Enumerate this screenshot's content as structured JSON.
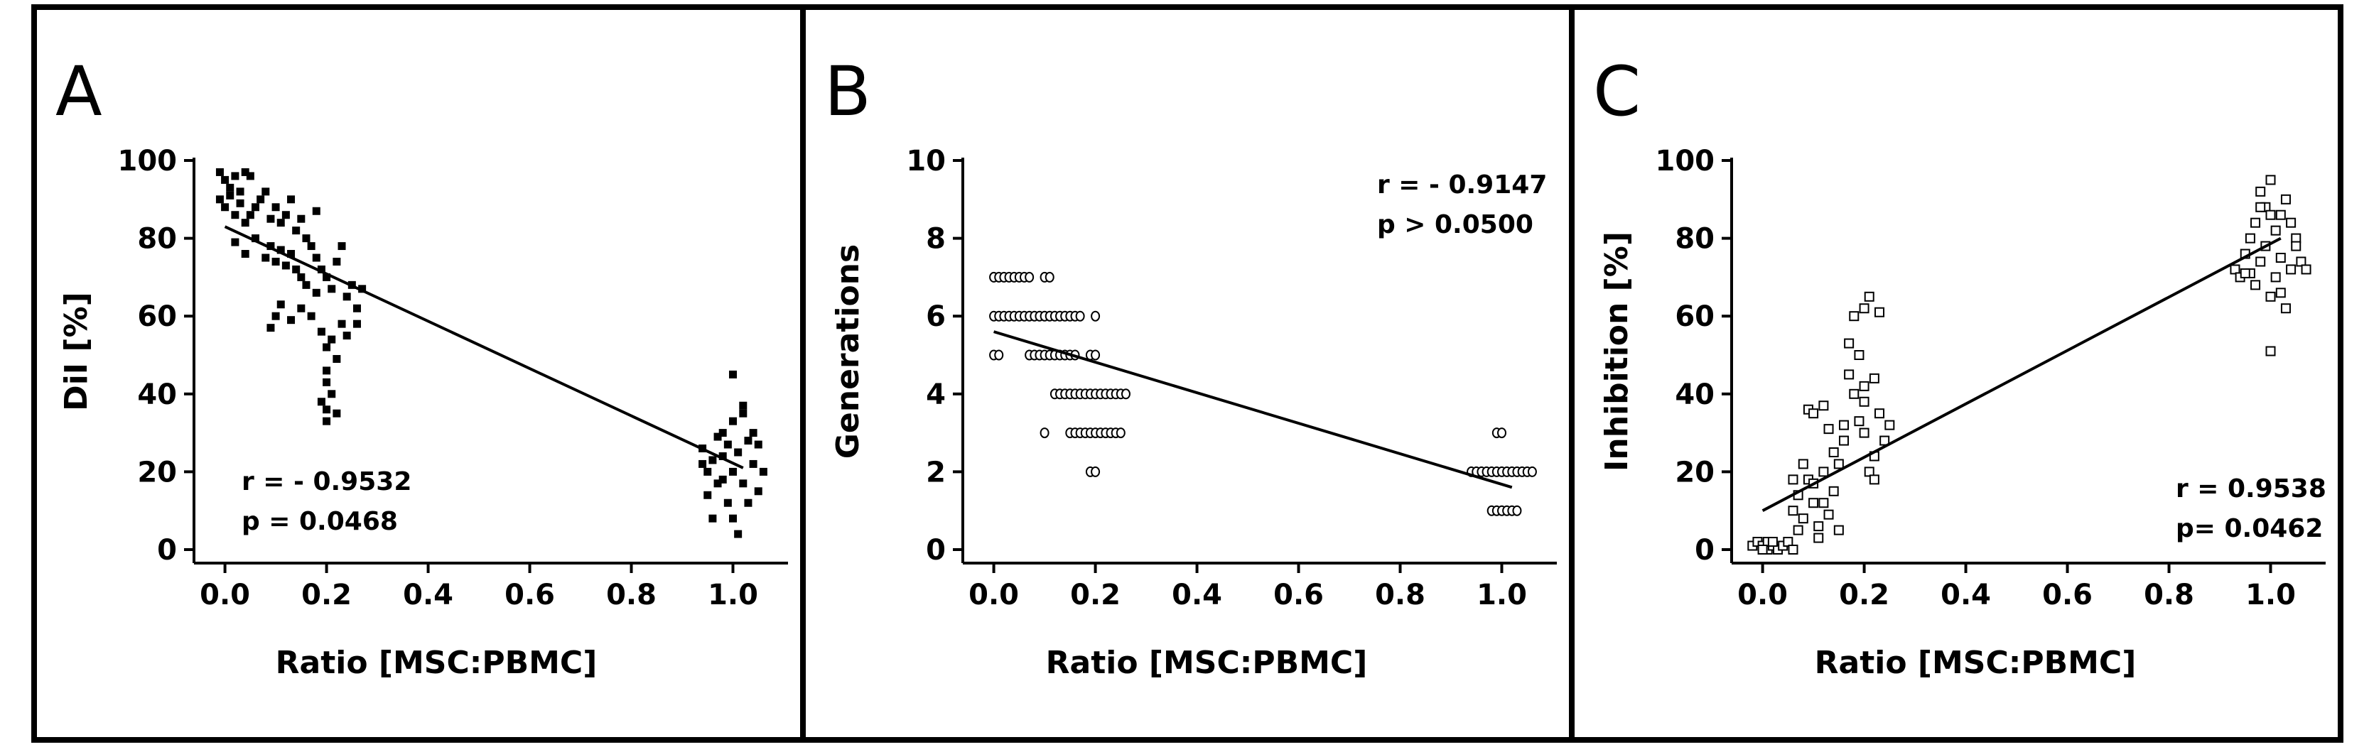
{
  "chart_data": [
    {
      "panel": "A",
      "type": "scatter",
      "marker": "filled-square",
      "xlabel": "Ratio [MSC:PBMC]",
      "ylabel": "DiI [%]",
      "xlim": [
        -0.04,
        1.1
      ],
      "ylim": [
        0,
        100
      ],
      "xticks": [
        0,
        0.2,
        0.4,
        0.6,
        0.8,
        1.0
      ],
      "xtick_labels": [
        "0.0",
        "0.2",
        "0.4",
        "0.6",
        "0.8",
        "1.0"
      ],
      "yticks": [
        0,
        20,
        40,
        60,
        80,
        100
      ],
      "ytick_labels": [
        "0",
        "20",
        "40",
        "60",
        "80",
        "100"
      ],
      "stats": [
        "r = - 0.9532",
        "p = 0.0468"
      ],
      "regression": {
        "x1": 0.0,
        "y1": 83,
        "x2": 1.02,
        "y2": 21
      },
      "points": [
        [
          -0.01,
          97
        ],
        [
          0.0,
          95
        ],
        [
          0.01,
          93
        ],
        [
          0.02,
          96
        ],
        [
          0.03,
          92
        ],
        [
          0.04,
          97
        ],
        [
          0.05,
          96
        ],
        [
          -0.01,
          90
        ],
        [
          0.0,
          88
        ],
        [
          0.01,
          91
        ],
        [
          0.02,
          86
        ],
        [
          0.03,
          89
        ],
        [
          0.04,
          84
        ],
        [
          0.05,
          86
        ],
        [
          0.06,
          88
        ],
        [
          0.07,
          90
        ],
        [
          0.08,
          92
        ],
        [
          0.09,
          85
        ],
        [
          0.1,
          88
        ],
        [
          0.11,
          84
        ],
        [
          0.12,
          86
        ],
        [
          0.13,
          90
        ],
        [
          0.14,
          82
        ],
        [
          0.15,
          85
        ],
        [
          0.16,
          80
        ],
        [
          0.17,
          78
        ],
        [
          0.18,
          87
        ],
        [
          0.02,
          79
        ],
        [
          0.04,
          76
        ],
        [
          0.06,
          80
        ],
        [
          0.08,
          75
        ],
        [
          0.09,
          78
        ],
        [
          0.1,
          74
        ],
        [
          0.11,
          77
        ],
        [
          0.12,
          73
        ],
        [
          0.13,
          76
        ],
        [
          0.14,
          72
        ],
        [
          0.15,
          70
        ],
        [
          0.16,
          68
        ],
        [
          0.18,
          75
        ],
        [
          0.19,
          72
        ],
        [
          0.2,
          70
        ],
        [
          0.21,
          67
        ],
        [
          0.22,
          74
        ],
        [
          0.23,
          78
        ],
        [
          0.24,
          65
        ],
        [
          0.25,
          68
        ],
        [
          0.26,
          62
        ],
        [
          0.27,
          67
        ],
        [
          0.09,
          57
        ],
        [
          0.1,
          60
        ],
        [
          0.11,
          63
        ],
        [
          0.13,
          59
        ],
        [
          0.15,
          62
        ],
        [
          0.17,
          60
        ],
        [
          0.18,
          66
        ],
        [
          0.19,
          56
        ],
        [
          0.2,
          52
        ],
        [
          0.21,
          54
        ],
        [
          0.22,
          49
        ],
        [
          0.23,
          58
        ],
        [
          0.24,
          55
        ],
        [
          0.26,
          58
        ],
        [
          0.2,
          43
        ],
        [
          0.2,
          46
        ],
        [
          0.21,
          40
        ],
        [
          0.2,
          36
        ],
        [
          0.2,
          33
        ],
        [
          0.22,
          35
        ],
        [
          0.19,
          38
        ],
        [
          0.94,
          26
        ],
        [
          0.95,
          20
        ],
        [
          0.95,
          14
        ],
        [
          0.96,
          23
        ],
        [
          0.97,
          29
        ],
        [
          0.97,
          17
        ],
        [
          0.98,
          24
        ],
        [
          0.98,
          30
        ],
        [
          0.99,
          12
        ],
        [
          0.99,
          27
        ],
        [
          1.0,
          20
        ],
        [
          1.0,
          33
        ],
        [
          1.0,
          45
        ],
        [
          1.0,
          8
        ],
        [
          1.01,
          25
        ],
        [
          1.01,
          4
        ],
        [
          1.02,
          35
        ],
        [
          1.02,
          17
        ],
        [
          1.03,
          28
        ],
        [
          1.03,
          12
        ],
        [
          1.04,
          30
        ],
        [
          1.04,
          22
        ],
        [
          1.05,
          27
        ],
        [
          1.05,
          15
        ],
        [
          0.96,
          8
        ],
        [
          0.98,
          18
        ],
        [
          1.02,
          37
        ],
        [
          0.94,
          22
        ],
        [
          1.06,
          20
        ]
      ]
    },
    {
      "panel": "B",
      "type": "scatter",
      "marker": "open-circle",
      "xlabel": "Ratio [MSC:PBMC]",
      "ylabel": "Generations",
      "xlim": [
        -0.04,
        1.1
      ],
      "ylim": [
        0,
        10
      ],
      "xticks": [
        0,
        0.2,
        0.4,
        0.6,
        0.8,
        1.0
      ],
      "xtick_labels": [
        "0.0",
        "0.2",
        "0.4",
        "0.6",
        "0.8",
        "1.0"
      ],
      "yticks": [
        0,
        2,
        4,
        6,
        8,
        10
      ],
      "ytick_labels": [
        "0",
        "2",
        "4",
        "6",
        "8",
        "10"
      ],
      "stats": [
        "r = - 0.9147",
        "p > 0.0500"
      ],
      "regression": {
        "x1": 0.0,
        "y1": 5.6,
        "x2": 1.02,
        "y2": 1.6
      },
      "points": [
        [
          0.0,
          7
        ],
        [
          0.01,
          7
        ],
        [
          0.02,
          7
        ],
        [
          0.03,
          7
        ],
        [
          0.04,
          7
        ],
        [
          0.05,
          7
        ],
        [
          0.06,
          7
        ],
        [
          0.07,
          7
        ],
        [
          0.1,
          7
        ],
        [
          0.11,
          7
        ],
        [
          0.0,
          6
        ],
        [
          0.01,
          6
        ],
        [
          0.02,
          6
        ],
        [
          0.03,
          6
        ],
        [
          0.04,
          6
        ],
        [
          0.05,
          6
        ],
        [
          0.06,
          6
        ],
        [
          0.07,
          6
        ],
        [
          0.08,
          6
        ],
        [
          0.09,
          6
        ],
        [
          0.1,
          6
        ],
        [
          0.11,
          6
        ],
        [
          0.12,
          6
        ],
        [
          0.13,
          6
        ],
        [
          0.14,
          6
        ],
        [
          0.15,
          6
        ],
        [
          0.16,
          6
        ],
        [
          0.17,
          6
        ],
        [
          0.2,
          6
        ],
        [
          0.0,
          5
        ],
        [
          0.01,
          5
        ],
        [
          0.07,
          5
        ],
        [
          0.08,
          5
        ],
        [
          0.09,
          5
        ],
        [
          0.1,
          5
        ],
        [
          0.11,
          5
        ],
        [
          0.12,
          5
        ],
        [
          0.13,
          5
        ],
        [
          0.14,
          5
        ],
        [
          0.15,
          5
        ],
        [
          0.16,
          5
        ],
        [
          0.19,
          5
        ],
        [
          0.2,
          5
        ],
        [
          0.12,
          4
        ],
        [
          0.13,
          4
        ],
        [
          0.14,
          4
        ],
        [
          0.15,
          4
        ],
        [
          0.16,
          4
        ],
        [
          0.17,
          4
        ],
        [
          0.18,
          4
        ],
        [
          0.19,
          4
        ],
        [
          0.2,
          4
        ],
        [
          0.21,
          4
        ],
        [
          0.22,
          4
        ],
        [
          0.23,
          4
        ],
        [
          0.24,
          4
        ],
        [
          0.25,
          4
        ],
        [
          0.26,
          4
        ],
        [
          0.1,
          3
        ],
        [
          0.15,
          3
        ],
        [
          0.16,
          3
        ],
        [
          0.17,
          3
        ],
        [
          0.18,
          3
        ],
        [
          0.19,
          3
        ],
        [
          0.2,
          3
        ],
        [
          0.21,
          3
        ],
        [
          0.22,
          3
        ],
        [
          0.23,
          3
        ],
        [
          0.24,
          3
        ],
        [
          0.25,
          3
        ],
        [
          0.19,
          2
        ],
        [
          0.2,
          2
        ],
        [
          0.99,
          3
        ],
        [
          1.0,
          3
        ],
        [
          0.94,
          2
        ],
        [
          0.95,
          2
        ],
        [
          0.96,
          2
        ],
        [
          0.97,
          2
        ],
        [
          0.98,
          2
        ],
        [
          0.99,
          2
        ],
        [
          1.0,
          2
        ],
        [
          1.01,
          2
        ],
        [
          1.02,
          2
        ],
        [
          1.03,
          2
        ],
        [
          1.04,
          2
        ],
        [
          1.05,
          2
        ],
        [
          1.06,
          2
        ],
        [
          0.98,
          1
        ],
        [
          0.99,
          1
        ],
        [
          1.0,
          1
        ],
        [
          1.01,
          1
        ],
        [
          1.02,
          1
        ],
        [
          1.03,
          1
        ]
      ]
    },
    {
      "panel": "C",
      "type": "scatter",
      "marker": "open-square",
      "xlabel": "Ratio [MSC:PBMC]",
      "ylabel": "Inhibition [%]",
      "xlim": [
        -0.04,
        1.1
      ],
      "ylim": [
        0,
        100
      ],
      "xticks": [
        0,
        0.2,
        0.4,
        0.6,
        0.8,
        1.0
      ],
      "xtick_labels": [
        "0.0",
        "0.2",
        "0.4",
        "0.6",
        "0.8",
        "1.0"
      ],
      "yticks": [
        0,
        20,
        40,
        60,
        80,
        100
      ],
      "ytick_labels": [
        "0",
        "20",
        "40",
        "60",
        "80",
        "100"
      ],
      "stats": [
        "r = 0.9538",
        "p= 0.0462"
      ],
      "regression": {
        "x1": 0.0,
        "y1": 10,
        "x2": 1.02,
        "y2": 80
      },
      "points": [
        [
          -0.02,
          1
        ],
        [
          -0.01,
          2
        ],
        [
          0.0,
          1
        ],
        [
          0.01,
          0
        ],
        [
          0.01,
          2
        ],
        [
          0.02,
          1
        ],
        [
          0.03,
          0
        ],
        [
          0.04,
          1
        ],
        [
          0.05,
          2
        ],
        [
          0.06,
          0
        ],
        [
          0.0,
          0
        ],
        [
          0.02,
          2
        ],
        [
          0.06,
          10
        ],
        [
          0.07,
          14
        ],
        [
          0.08,
          8
        ],
        [
          0.09,
          18
        ],
        [
          0.1,
          12
        ],
        [
          0.11,
          6
        ],
        [
          0.12,
          20
        ],
        [
          0.13,
          9
        ],
        [
          0.14,
          15
        ],
        [
          0.15,
          5
        ],
        [
          0.11,
          3
        ],
        [
          0.08,
          22
        ],
        [
          0.09,
          36
        ],
        [
          0.1,
          35
        ],
        [
          0.12,
          37
        ],
        [
          0.13,
          31
        ],
        [
          0.06,
          18
        ],
        [
          0.07,
          5
        ],
        [
          0.1,
          17
        ],
        [
          0.12,
          12
        ],
        [
          0.14,
          25
        ],
        [
          0.15,
          22
        ],
        [
          0.16,
          28
        ],
        [
          0.17,
          45
        ],
        [
          0.17,
          53
        ],
        [
          0.18,
          40
        ],
        [
          0.19,
          33
        ],
        [
          0.2,
          38
        ],
        [
          0.2,
          62
        ],
        [
          0.21,
          65
        ],
        [
          0.2,
          30
        ],
        [
          0.21,
          20
        ],
        [
          0.22,
          44
        ],
        [
          0.22,
          24
        ],
        [
          0.23,
          35
        ],
        [
          0.23,
          61
        ],
        [
          0.24,
          28
        ],
        [
          0.25,
          32
        ],
        [
          0.18,
          60
        ],
        [
          0.19,
          50
        ],
        [
          0.2,
          42
        ],
        [
          0.22,
          18
        ],
        [
          0.16,
          32
        ],
        [
          0.93,
          72
        ],
        [
          0.94,
          70
        ],
        [
          0.95,
          76
        ],
        [
          0.96,
          80
        ],
        [
          0.97,
          68
        ],
        [
          0.97,
          84
        ],
        [
          0.98,
          92
        ],
        [
          0.98,
          74
        ],
        [
          0.99,
          88
        ],
        [
          0.99,
          78
        ],
        [
          1.0,
          95
        ],
        [
          1.0,
          65
        ],
        [
          1.0,
          51
        ],
        [
          1.01,
          82
        ],
        [
          1.01,
          70
        ],
        [
          1.02,
          86
        ],
        [
          1.02,
          75
        ],
        [
          1.03,
          90
        ],
        [
          1.03,
          62
        ],
        [
          1.04,
          72
        ],
        [
          1.04,
          84
        ],
        [
          1.05,
          80
        ],
        [
          1.06,
          74
        ],
        [
          1.07,
          72
        ],
        [
          0.96,
          71
        ],
        [
          0.98,
          88
        ],
        [
          1.0,
          86
        ],
        [
          1.02,
          66
        ],
        [
          1.05,
          78
        ],
        [
          0.95,
          71
        ]
      ]
    }
  ]
}
